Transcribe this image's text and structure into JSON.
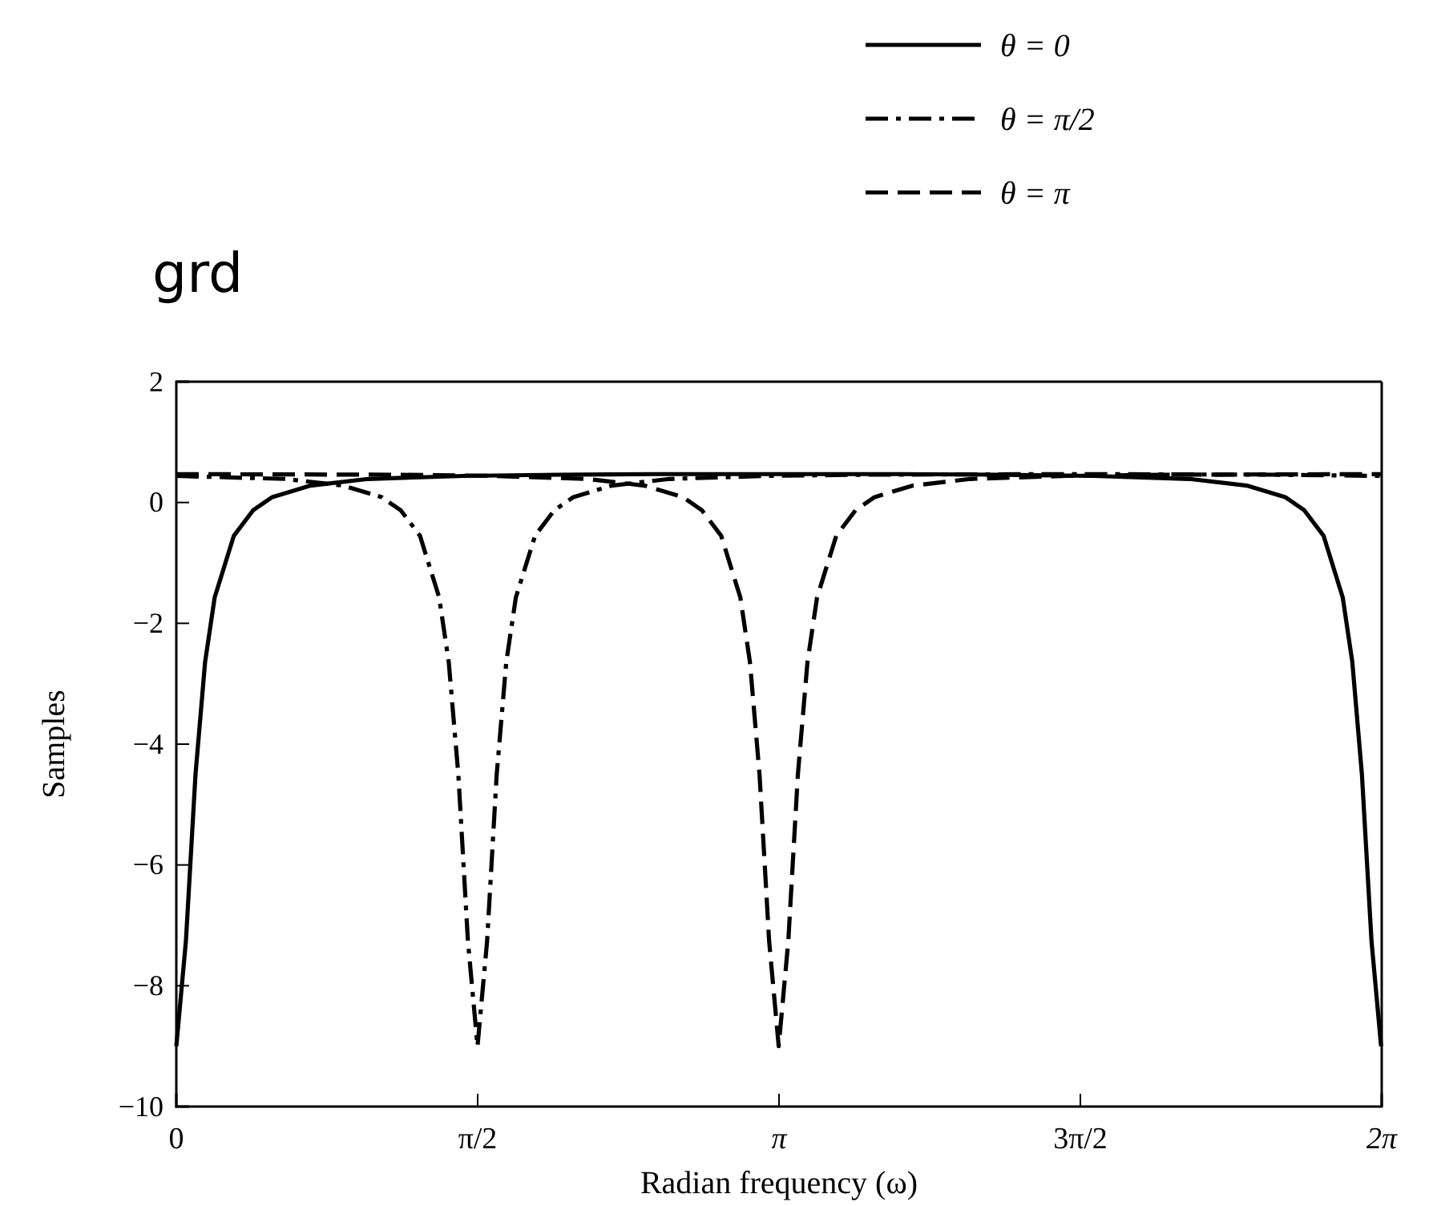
{
  "chart_data": {
    "type": "line",
    "title": "grd",
    "xlabel": "Radian frequency (ω)",
    "ylabel": "Samples",
    "xlim": [
      0,
      6.2832
    ],
    "xticks": [
      0,
      {
        "value": 1.5708,
        "label": "π/2"
      },
      {
        "value": 3.1416,
        "label": "π"
      },
      {
        "value": 4.7124,
        "label": "3π/2"
      },
      {
        "value": 6.2832,
        "label": "2π"
      }
    ],
    "ylim": [
      -10,
      2
    ],
    "yticks": [
      2,
      0,
      -2,
      -4,
      -6,
      -8,
      -10
    ],
    "grid": false,
    "legend": "top right",
    "marker": "none",
    "series": [
      {
        "name": "θ = 0",
        "color": "#000000",
        "line_style": "solid",
        "x": [
          0,
          0.05,
          0.1,
          0.15,
          0.2,
          0.3,
          0.4,
          0.5,
          0.7,
          1.0,
          1.5,
          2.0,
          2.5,
          3.14,
          3.78,
          4.28,
          4.78,
          5.28,
          5.58,
          5.78,
          5.88,
          5.98,
          6.08,
          6.13,
          6.18,
          6.23,
          6.28
        ],
        "values": [
          -9,
          -7.26,
          -4.5,
          -2.64,
          -1.57,
          -0.55,
          -0.13,
          0.09,
          0.28,
          0.39,
          0.44,
          0.46,
          0.47,
          0.47,
          0.47,
          0.46,
          0.44,
          0.39,
          0.28,
          0.09,
          -0.13,
          -0.55,
          -1.57,
          -2.64,
          -4.5,
          -7.26,
          -9
        ]
      },
      {
        "name": "θ = π/2",
        "color": "#000000",
        "line_style": "dashdot",
        "x": [
          0,
          0.57,
          0.87,
          1.07,
          1.17,
          1.27,
          1.37,
          1.42,
          1.47,
          1.52,
          1.57,
          1.62,
          1.67,
          1.72,
          1.77,
          1.87,
          1.97,
          2.07,
          2.27,
          2.57,
          3.07,
          3.57,
          4.71,
          5.71,
          6.28
        ],
        "values": [
          0.44,
          0.39,
          0.28,
          0.09,
          -0.13,
          -0.55,
          -1.57,
          -2.64,
          -4.5,
          -7.26,
          -9,
          -7.26,
          -4.5,
          -2.64,
          -1.57,
          -0.55,
          -0.13,
          0.09,
          0.28,
          0.39,
          0.44,
          0.46,
          0.47,
          0.46,
          0.44
        ]
      },
      {
        "name": "θ = π",
        "color": "#000000",
        "line_style": "dashed",
        "x": [
          0,
          1.14,
          1.64,
          2.14,
          2.44,
          2.64,
          2.74,
          2.84,
          2.94,
          2.99,
          3.04,
          3.09,
          3.14,
          3.19,
          3.24,
          3.29,
          3.34,
          3.44,
          3.54,
          3.64,
          3.84,
          4.14,
          4.64,
          5.14,
          6.28
        ],
        "values": [
          0.47,
          0.46,
          0.44,
          0.39,
          0.28,
          0.09,
          -0.13,
          -0.55,
          -1.57,
          -2.64,
          -4.5,
          -7.26,
          -9,
          -7.26,
          -4.5,
          -2.64,
          -1.57,
          -0.55,
          -0.13,
          0.09,
          0.28,
          0.39,
          0.44,
          0.46,
          0.47
        ]
      }
    ]
  }
}
